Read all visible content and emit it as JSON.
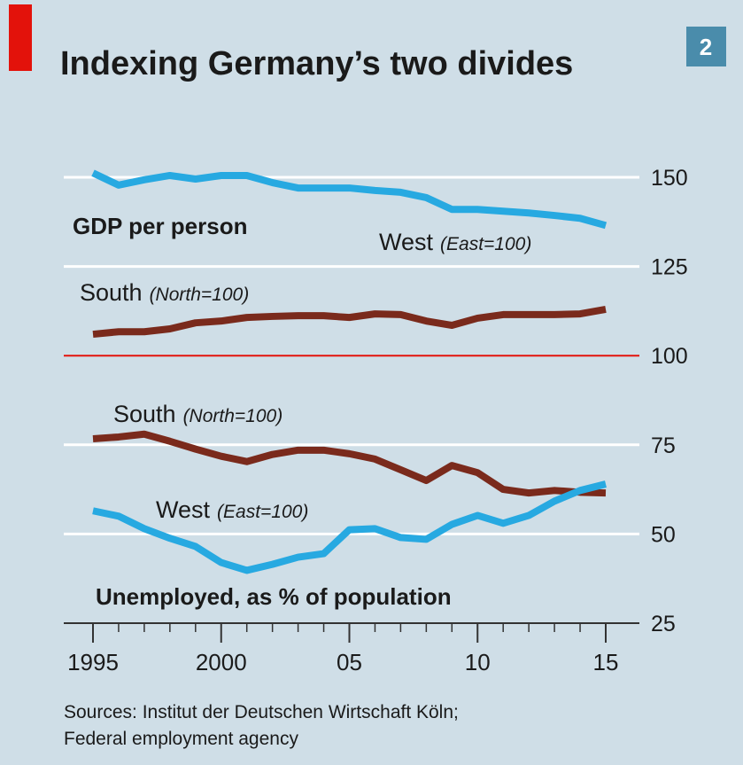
{
  "chart_data": {
    "type": "line",
    "title": "Indexing Germany’s two divides",
    "badge": "2",
    "annotations": [
      "GDP per person",
      "Unemployed, as % of population"
    ],
    "x": [
      1995,
      1996,
      1997,
      1998,
      1999,
      2000,
      2001,
      2002,
      2003,
      2004,
      2005,
      2006,
      2007,
      2008,
      2009,
      2010,
      2011,
      2012,
      2013,
      2014,
      2015
    ],
    "series": [
      {
        "name": "West",
        "note": "(East=100)",
        "color": "#27a9e1",
        "values": [
          151.2,
          147.8,
          149.3,
          150.5,
          149.5,
          150.5,
          150.5,
          148.5,
          147,
          147,
          147,
          146.3,
          145.8,
          144.3,
          141,
          141,
          140.5,
          140,
          139.3,
          138.5,
          136.5
        ]
      },
      {
        "name": "South",
        "note": "(North=100)",
        "color": "#7a2a1c",
        "values": [
          106,
          106.7,
          106.7,
          107.5,
          109.2,
          109.7,
          110.7,
          111,
          111.2,
          111.2,
          110.7,
          111.7,
          111.5,
          109.7,
          108.5,
          110.5,
          111.5,
          111.5,
          111.5,
          111.7,
          113
        ]
      },
      {
        "name": "South",
        "note": "(North=100)",
        "color": "#7a2a1c",
        "values": [
          76.7,
          77.2,
          78,
          76,
          73.8,
          71.8,
          70.3,
          72.3,
          73.5,
          73.5,
          72.5,
          71,
          68,
          65,
          69.2,
          67.2,
          62.5,
          61.5,
          62.2,
          61.7,
          61.5
        ]
      },
      {
        "name": "West",
        "note": "(East=100)",
        "color": "#27a9e1",
        "values": [
          56.5,
          55,
          51.5,
          48.8,
          46.5,
          42,
          39.8,
          41.5,
          43.5,
          44.5,
          51.2,
          51.5,
          49,
          48.5,
          52.7,
          55.2,
          53,
          55.2,
          59.2,
          62.2,
          64
        ]
      }
    ],
    "xlim": [
      1995,
      2015
    ],
    "xticks": [
      {
        "value": 1995,
        "label": "1995"
      },
      {
        "value": 2000,
        "label": "2000"
      },
      {
        "value": 2005,
        "label": "05"
      },
      {
        "value": 2010,
        "label": "10"
      },
      {
        "value": 2015,
        "label": "15"
      }
    ],
    "ylim": [
      25,
      150
    ],
    "yticks": [
      25,
      50,
      75,
      100,
      125,
      150
    ],
    "reference_line": {
      "value": 100,
      "color": "#e3120b"
    },
    "grid": true,
    "source": [
      "Sources: Institut der Deutschen Wirtschaft Köln;",
      "Federal employment agency"
    ]
  }
}
